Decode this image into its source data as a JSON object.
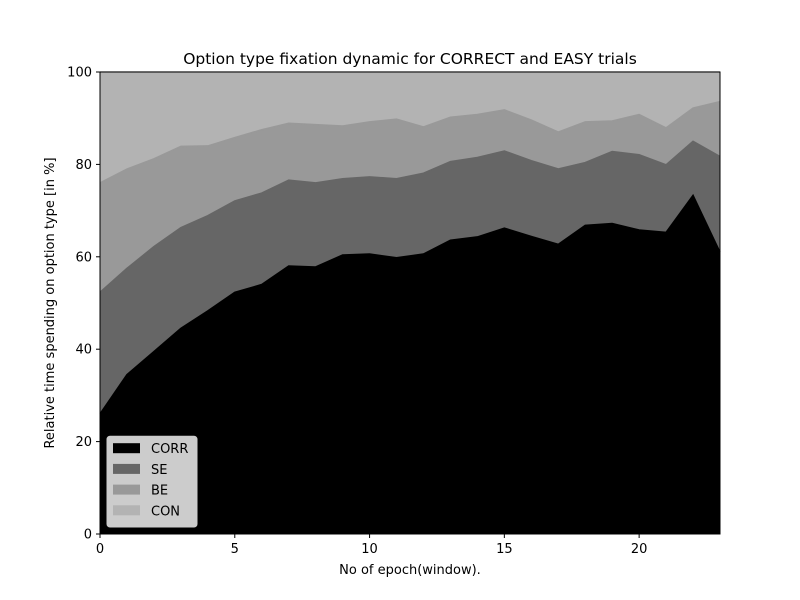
{
  "chart_data": {
    "type": "area",
    "stacked": true,
    "title": "Option type fixation dynamic for CORRECT and EASY trials",
    "xlabel": "No of epoch(window).",
    "ylabel": "Relative time spending on option type [in %]",
    "xlim": [
      0,
      23
    ],
    "ylim": [
      0,
      100
    ],
    "xticks": [
      0,
      5,
      10,
      15,
      20
    ],
    "yticks": [
      0,
      20,
      40,
      60,
      80,
      100
    ],
    "legend_position": "lower-left",
    "x": [
      0,
      1,
      2,
      3,
      4,
      5,
      6,
      7,
      8,
      9,
      10,
      11,
      12,
      13,
      14,
      15,
      16,
      17,
      18,
      19,
      20,
      21,
      22,
      23
    ],
    "series": [
      {
        "name": "CORR",
        "color": "#000000",
        "values": [
          26,
          34.5,
          39.5,
          44.5,
          48.3,
          52.3,
          54,
          58,
          57.8,
          60.4,
          60.6,
          59.8,
          60.6,
          63.6,
          64.3,
          66.2,
          64.4,
          62.7,
          66.8,
          67.2,
          65.8,
          65.3,
          73.3,
          61
        ]
      },
      {
        "name": "SE",
        "color": "#666666",
        "values": [
          26.3,
          23,
          22.7,
          21.8,
          20.6,
          19.8,
          19.8,
          18.6,
          18.2,
          16.5,
          16.7,
          17.1,
          17.5,
          17,
          17.2,
          16.7,
          16.4,
          16.3,
          13.6,
          15.6,
          16.3,
          14.6,
          11.7,
          20.7
        ]
      },
      {
        "name": "BE",
        "color": "#999999",
        "values": [
          23.7,
          21.5,
          19,
          17.6,
          15.1,
          13.7,
          13.7,
          12.3,
          12.6,
          11.4,
          11.9,
          12.9,
          10,
          9.6,
          9.3,
          8.9,
          8.8,
          8,
          8.8,
          6.6,
          8.7,
          8,
          7.2,
          11.9
        ]
      },
      {
        "name": "CON",
        "color": "#b3b3b3",
        "values": [
          24,
          21,
          18.8,
          16.1,
          16,
          14.2,
          12.5,
          11.1,
          11.4,
          11.7,
          10.8,
          10.2,
          11.9,
          9.8,
          9.2,
          8.2,
          10.4,
          13,
          10.8,
          10.6,
          9.2,
          12.1,
          7.8,
          6.4
        ]
      }
    ]
  }
}
